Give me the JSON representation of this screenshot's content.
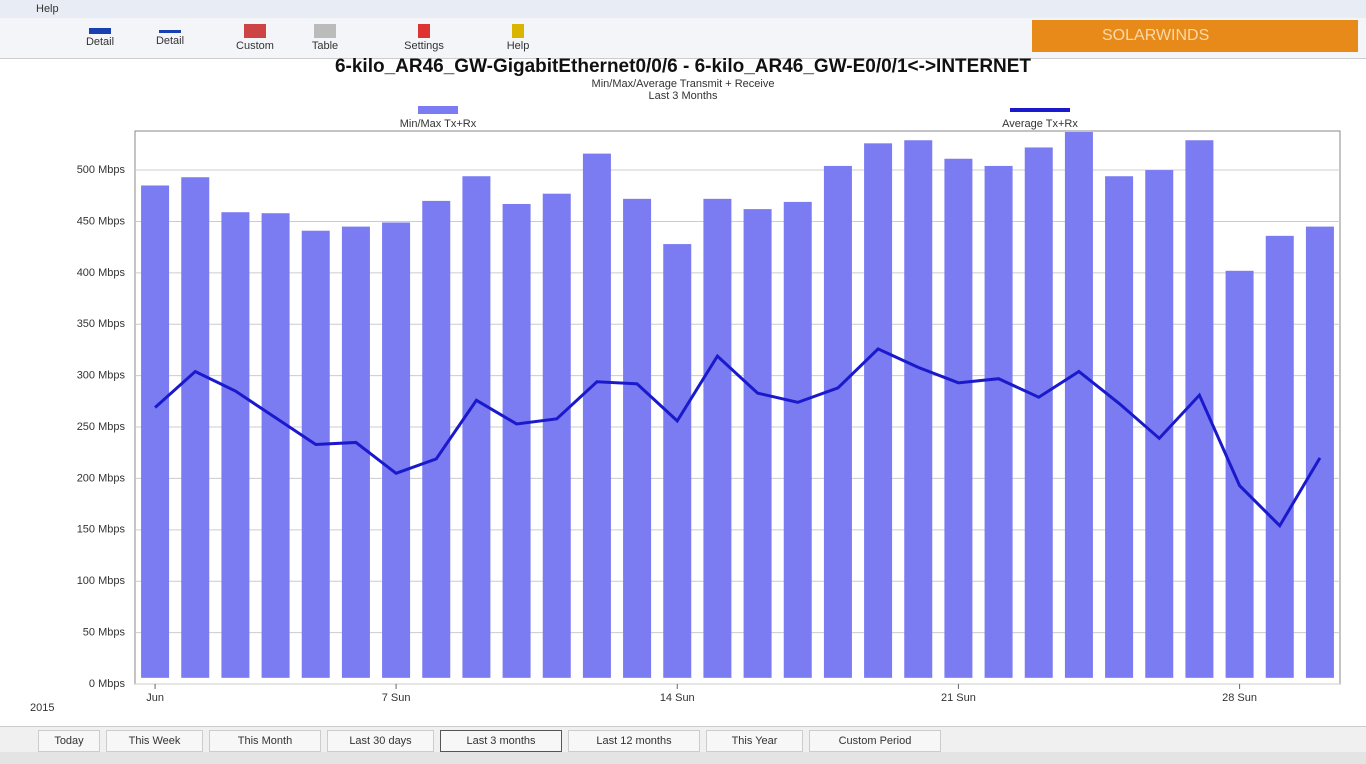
{
  "menu": {
    "help": "Help"
  },
  "toolbar": {
    "buttons": [
      "Detail",
      "Detail",
      "Custom",
      "Table",
      "Settings",
      "Help"
    ],
    "brand": "SOLARWINDS"
  },
  "chart_data": {
    "type": "bar_line",
    "title": "6-kilo_AR46_GW-GigabitEthernet0/0/6 - 6-kilo_AR46_GW-E0/0/1<->INTERNET",
    "subtitle": "Min/Max/Average Transmit + Receive",
    "subtitle2": "Last 3 Months",
    "categories": [
      "Jun",
      null,
      null,
      null,
      null,
      null,
      "7 Sun",
      null,
      null,
      null,
      null,
      null,
      null,
      "14 Sun",
      null,
      null,
      null,
      null,
      null,
      null,
      "21 Sun",
      null,
      null,
      null,
      null,
      null,
      null,
      "28 Sun",
      null,
      null
    ],
    "year_label": "2015",
    "series": [
      {
        "name": "Min/Max Tx+Rx",
        "color": "#7b7bf2",
        "low": [
          6,
          6,
          6,
          6,
          6,
          6,
          6,
          6,
          6,
          6,
          6,
          6,
          6,
          6,
          6,
          6,
          6,
          6,
          6,
          6,
          6,
          6,
          6,
          6,
          6,
          6,
          6,
          6,
          6,
          6
        ],
        "values": [
          485,
          493,
          459,
          458,
          441,
          445,
          449,
          470,
          494,
          467,
          477,
          516,
          472,
          428,
          472,
          462,
          469,
          504,
          526,
          529,
          511,
          504,
          522,
          537,
          494,
          500,
          529,
          402,
          436,
          445
        ]
      },
      {
        "name": "Average Tx+Rx",
        "color": "#1a1acc",
        "values": [
          269,
          304,
          285,
          259,
          233,
          235,
          205,
          219,
          276,
          253,
          258,
          294,
          292,
          256,
          319,
          283,
          274,
          288,
          326,
          308,
          293,
          297,
          279,
          304,
          273,
          239,
          281,
          193,
          154,
          220
        ]
      }
    ],
    "ylim": [
      0,
      538
    ],
    "yticks": [
      {
        "value": 0,
        "label": "0 Mbps"
      },
      {
        "value": 50,
        "label": "50 Mbps"
      },
      {
        "value": 100,
        "label": "100 Mbps"
      },
      {
        "value": 150,
        "label": "150 Mbps"
      },
      {
        "value": 200,
        "label": "200 Mbps"
      },
      {
        "value": 250,
        "label": "250 Mbps"
      },
      {
        "value": 300,
        "label": "300 Mbps"
      },
      {
        "value": 350,
        "label": "350 Mbps"
      },
      {
        "value": 400,
        "label": "400 Mbps"
      },
      {
        "value": 450,
        "label": "450 Mbps"
      },
      {
        "value": 500,
        "label": "500 Mbps"
      }
    ],
    "grid": true
  },
  "tabs": [
    "Today",
    "This Week",
    "This Month",
    "Last 30 days",
    "Last 3 months",
    "Last 12 months",
    "This Year",
    "Custom Period"
  ]
}
